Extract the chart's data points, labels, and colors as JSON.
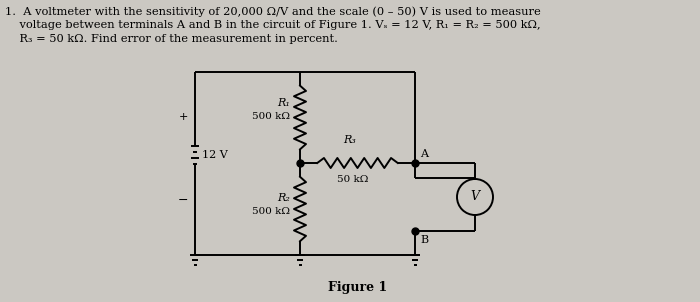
{
  "background_color": "#cbc8c2",
  "text_line1": "1.  A voltmeter with the sensitivity of 20,000 Ω/V and the scale (0 – 50) V is used to measure",
  "text_line2": "    voltage between terminals A and B in the circuit of Figure 1. Vₛ = 12 V, R₁ = R₂ = 500 kΩ,",
  "text_line3": "    R₃ = 50 kΩ. Find error of the measurement in percent.",
  "figure_label": "Figure 1",
  "R1_label": "R₁",
  "R1_value": "500 kΩ",
  "R2_label": "R₂",
  "R2_value": "500 kΩ",
  "R3_label": "R₃",
  "R3_value": "50 kΩ",
  "Vs_label": "12 V",
  "V_label": "V",
  "A_label": "A",
  "B_label": "B",
  "plus_label": "+",
  "minus_label": "−",
  "font_size_text": 8.2,
  "font_size_circuit": 7.5,
  "lw": 1.4
}
